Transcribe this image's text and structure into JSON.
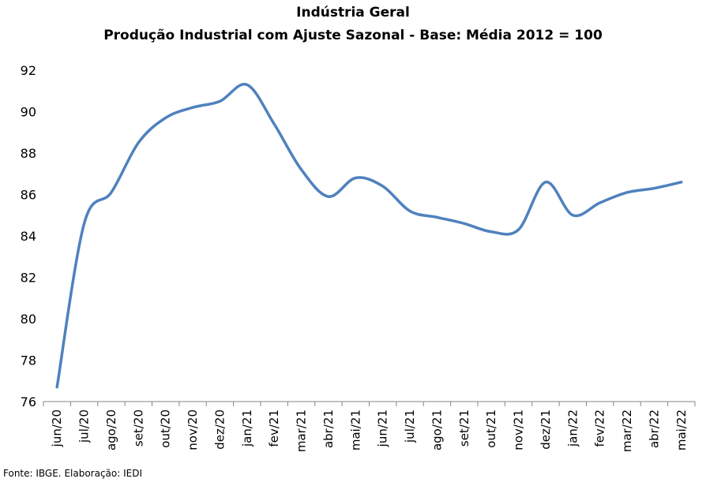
{
  "chart_data": {
    "type": "line",
    "title": "Indústria Geral",
    "subtitle": "Produção Industrial com Ajuste Sazonal - Base: Média 2012 = 100",
    "xlabel": "",
    "ylabel": "",
    "ylim": [
      76,
      92
    ],
    "yticks": [
      76,
      78,
      80,
      82,
      84,
      86,
      88,
      90,
      92
    ],
    "categories": [
      "jun/20",
      "jul/20",
      "ago/20",
      "set/20",
      "out/20",
      "nov/20",
      "dez/20",
      "jan/21",
      "fev/21",
      "mar/21",
      "abr/21",
      "mai/21",
      "jun/21",
      "jul/21",
      "ago/21",
      "set/21",
      "out/21",
      "nov/21",
      "dez/21",
      "jan/22",
      "fev/22",
      "mar/22",
      "abr/22",
      "mai/22"
    ],
    "series": [
      {
        "values": [
          76.7,
          84.6,
          86.1,
          88.5,
          89.7,
          90.2,
          90.5,
          91.3,
          89.4,
          87.2,
          85.9,
          86.8,
          86.4,
          85.2,
          84.9,
          84.6,
          84.2,
          84.3,
          86.6,
          85.0,
          85.6,
          86.1,
          86.3,
          86.6
        ],
        "color": "#4F81BD"
      }
    ],
    "grid": false,
    "legend": "none"
  },
  "source": "Fonte: IBGE. Elaboração: IEDI"
}
